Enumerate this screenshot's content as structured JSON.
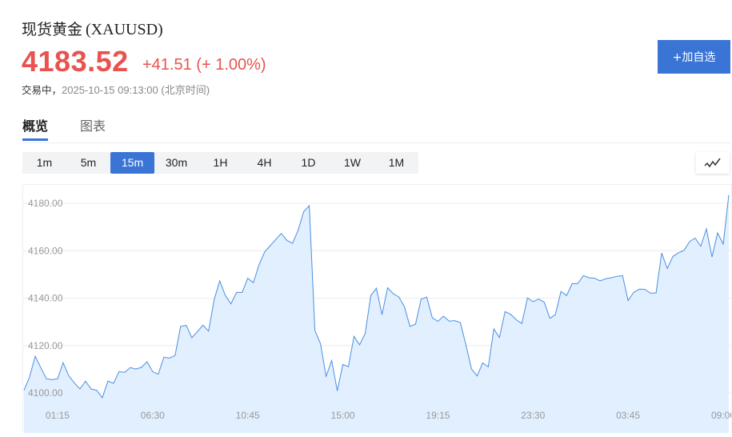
{
  "header": {
    "name": "现货黄金",
    "symbol": "(XAUUSD)",
    "price": "4183.52",
    "change": "+41.51",
    "change_pct": "(+ 1.00%)",
    "status": "交易中，",
    "timestamp": "2025-10-15 09:13:00",
    "timezone": "(北京时间)",
    "add_watchlist_label": "+加自选",
    "up_color": "#e8534f",
    "accent_color": "#3a75d6"
  },
  "tabs": [
    {
      "label": "概览",
      "active": true
    },
    {
      "label": "图表",
      "active": false
    }
  ],
  "periods": [
    {
      "label": "1m"
    },
    {
      "label": "5m"
    },
    {
      "label": "15m",
      "selected": true
    },
    {
      "label": "30m"
    },
    {
      "label": "1H"
    },
    {
      "label": "4H"
    },
    {
      "label": "1D"
    },
    {
      "label": "1W"
    },
    {
      "label": "1M"
    }
  ],
  "chart_type_icon": "line-chart-icon",
  "chart_data": {
    "type": "area",
    "interval": "15m",
    "ylim": [
      4085,
      4187
    ],
    "y_ticks": [
      "4100.00",
      "4120.00",
      "4140.00",
      "4160.00",
      "4180.00"
    ],
    "x_ticks": [
      {
        "label": "01:15",
        "index": 6
      },
      {
        "label": "06:30",
        "index": 23
      },
      {
        "label": "10:45",
        "index": 40
      },
      {
        "label": "15:00",
        "index": 57
      },
      {
        "label": "19:15",
        "index": 74
      },
      {
        "label": "23:30",
        "index": 91
      },
      {
        "label": "03:45",
        "index": 108
      },
      {
        "label": "09:00",
        "index": 125
      }
    ],
    "grid": true,
    "line_color": "#4a8fe0",
    "fill_color": "#e2efff",
    "values": [
      4101.1,
      4106.8,
      4115.5,
      4110.7,
      4106.0,
      4105.6,
      4106.0,
      4112.8,
      4107.3,
      4104.3,
      4101.7,
      4105.0,
      4101.7,
      4101.1,
      4098.0,
      4105.0,
      4104.1,
      4109.0,
      4108.7,
      4110.7,
      4110.1,
      4110.8,
      4113.2,
      4109.0,
      4107.9,
      4115.1,
      4114.7,
      4115.8,
      4128.1,
      4128.5,
      4123.3,
      4125.9,
      4128.6,
      4126.1,
      4139.4,
      4147.3,
      4141.1,
      4137.6,
      4142.4,
      4142.4,
      4148.4,
      4146.5,
      4154.0,
      4159.4,
      4162.1,
      4164.7,
      4167.3,
      4164.4,
      4163.1,
      4168.6,
      4176.5,
      4179.0,
      4126.4,
      4120.8,
      4107.0,
      4113.7,
      4100.9,
      4112.0,
      4111.1,
      4123.9,
      4120.3,
      4125.1,
      4141.1,
      4144.2,
      4133.0,
      4144.4,
      4141.9,
      4140.5,
      4136.4,
      4128.1,
      4129.0,
      4139.6,
      4140.4,
      4131.7,
      4130.2,
      4132.4,
      4130.3,
      4130.5,
      4129.7,
      4120.3,
      4110.1,
      4107.2,
      4112.7,
      4111.0,
      4127.0,
      4123.4,
      4134.3,
      4133.2,
      4130.9,
      4129.3,
      4140.1,
      4138.5,
      4139.6,
      4138.3,
      4131.5,
      4133.0,
      4142.8,
      4141.1,
      4146.1,
      4146.1,
      4149.5,
      4148.6,
      4148.4,
      4147.3,
      4148.2,
      4148.6,
      4149.2,
      4149.5,
      4139.0,
      4142.4,
      4143.8,
      4143.7,
      4142.1,
      4142.2,
      4159.0,
      4152.5,
      4157.6,
      4159.1,
      4160.2,
      4163.9,
      4165.3,
      4161.9,
      4169.2,
      4157.4,
      4167.5,
      4162.8,
      4183.5
    ]
  }
}
